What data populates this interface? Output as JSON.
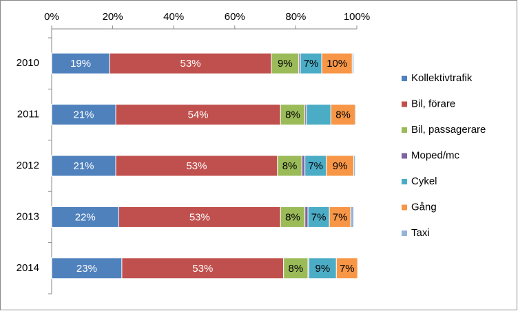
{
  "chart_data": {
    "type": "stacked_bar_horizontal",
    "categories": [
      "2010",
      "2011",
      "2012",
      "2013",
      "2014"
    ],
    "series": [
      {
        "name": "Kollektivtrafik",
        "color": "#4f81bd",
        "values": [
          19,
          21,
          21,
          22,
          23
        ],
        "value_labels": [
          "19%",
          "21%",
          "21%",
          "22%",
          "23%"
        ]
      },
      {
        "name": "Bil, förare",
        "color": "#c0504d",
        "values": [
          53,
          54,
          53,
          53,
          53
        ],
        "value_labels": [
          "53%",
          "54%",
          "53%",
          "53%",
          "53%"
        ]
      },
      {
        "name": "Bil, passagerare",
        "color": "#9bbb59",
        "values": [
          9,
          8,
          8,
          8,
          8
        ],
        "value_labels": [
          "9%",
          "8%",
          "8%",
          "8%",
          "8%"
        ]
      },
      {
        "name": "Moped/mc",
        "color": "#8064a2",
        "values": [
          0.5,
          0.5,
          1,
          1,
          0.3
        ],
        "value_labels": [
          null,
          null,
          null,
          null,
          null
        ]
      },
      {
        "name": "Cykel",
        "color": "#4bacc6",
        "values": [
          7,
          8,
          7,
          7,
          9
        ],
        "value_labels": [
          "7%",
          null,
          "7%",
          "7%",
          "9%"
        ]
      },
      {
        "name": "Gång",
        "color": "#f79646",
        "values": [
          10,
          8,
          9,
          7,
          7
        ],
        "value_labels": [
          "10%",
          "8%",
          "9%",
          "7%",
          "7%"
        ]
      },
      {
        "name": "Taxi",
        "color": "#95b3d7",
        "values": [
          0.5,
          0.3,
          0.5,
          1,
          0.2
        ],
        "value_labels": [
          null,
          null,
          null,
          null,
          null
        ]
      }
    ],
    "xlim": [
      0,
      100
    ],
    "xticks": [
      {
        "value": 0,
        "label": "0%"
      },
      {
        "value": 20,
        "label": "20%"
      },
      {
        "value": 40,
        "label": "40%"
      },
      {
        "value": 60,
        "label": "60%"
      },
      {
        "value": 80,
        "label": "80%"
      },
      {
        "value": 100,
        "label": "100%"
      }
    ],
    "grid": false,
    "legend": "right"
  }
}
